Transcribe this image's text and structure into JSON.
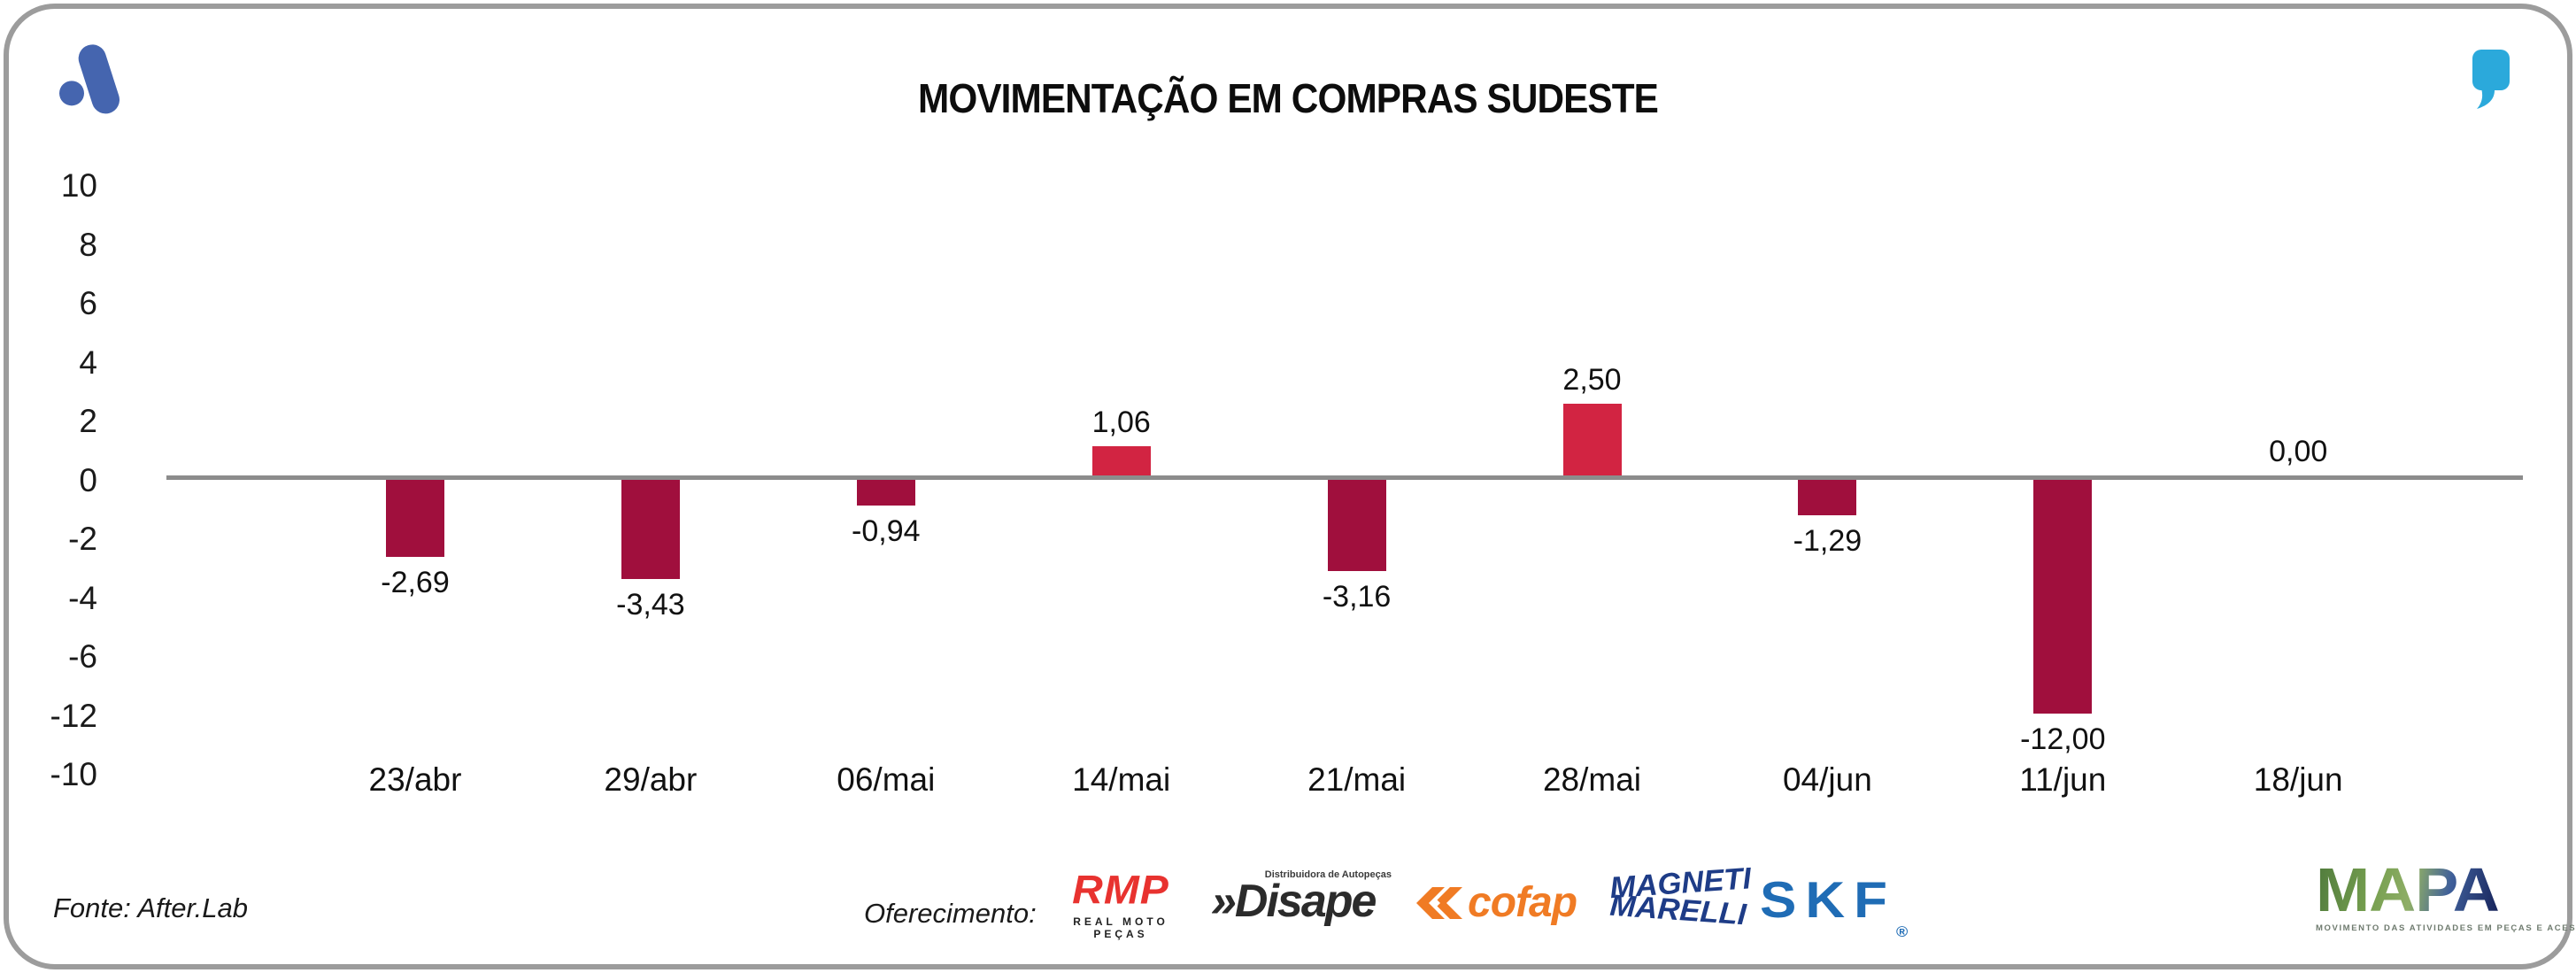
{
  "header": {
    "title": "MOVIMENTAÇÃO EM COMPRAS SUDESTE"
  },
  "branding": {
    "top_left_icon": "afterlab-mark",
    "top_left_color": "#4565AF",
    "top_right_icon": "quote-mark",
    "top_right_color": "#2BA9DB"
  },
  "chart_data": {
    "type": "bar",
    "title": "MOVIMENTAÇÃO EM COMPRAS SUDESTE",
    "categories": [
      "23/abr",
      "29/abr",
      "06/mai",
      "14/mai",
      "21/mai",
      "28/mai",
      "04/jun",
      "11/jun",
      "18/jun"
    ],
    "values": [
      -2.69,
      -3.43,
      -0.94,
      1.06,
      -3.16,
      2.5,
      -1.29,
      -12.0,
      0.0
    ],
    "value_labels": [
      "-2,69",
      "-3,43",
      "-0,94",
      "1,06",
      "-3,16",
      "2,50",
      "-1,29",
      "-12,00",
      "0,00"
    ],
    "y_ticks": [
      "10",
      "8",
      "6",
      "4",
      "2",
      "0",
      "-2",
      "-4",
      "-6",
      "-12",
      "-10"
    ],
    "ylim": [
      -12,
      10
    ],
    "grid": false,
    "legend_position": "none",
    "xlabel": "",
    "ylabel": "",
    "colors": {
      "positive_bar": "#D22442",
      "negative_bar": "#A00F3D",
      "zero_line": "#8C8C8C"
    }
  },
  "footer": {
    "source": "Fonte: After.Lab",
    "sponsor_label": "Oferecimento:",
    "sponsors": {
      "rmp": {
        "name": "RMP",
        "subtitle": "REAL MOTO PEÇAS",
        "color": "#E8322F"
      },
      "disape": {
        "name": "Disape",
        "prefix": "»",
        "subtitle": "Distribuidora de Autopeças",
        "color": "#2B2B2B"
      },
      "cofap": {
        "name": "cofap",
        "color": "#F07B24"
      },
      "magneti_marelli": {
        "line1": "MAGNETI",
        "line2": "MARELLI",
        "color": "#1E3C87"
      },
      "skf": {
        "name": "SKF",
        "reg": "®",
        "color": "#1F6CB5"
      },
      "mapa": {
        "name": "MAPA",
        "subtitle": "MOVIMENTO DAS ATIVIDADES EM PEÇAS E ACESSÓRIOS"
      }
    }
  }
}
